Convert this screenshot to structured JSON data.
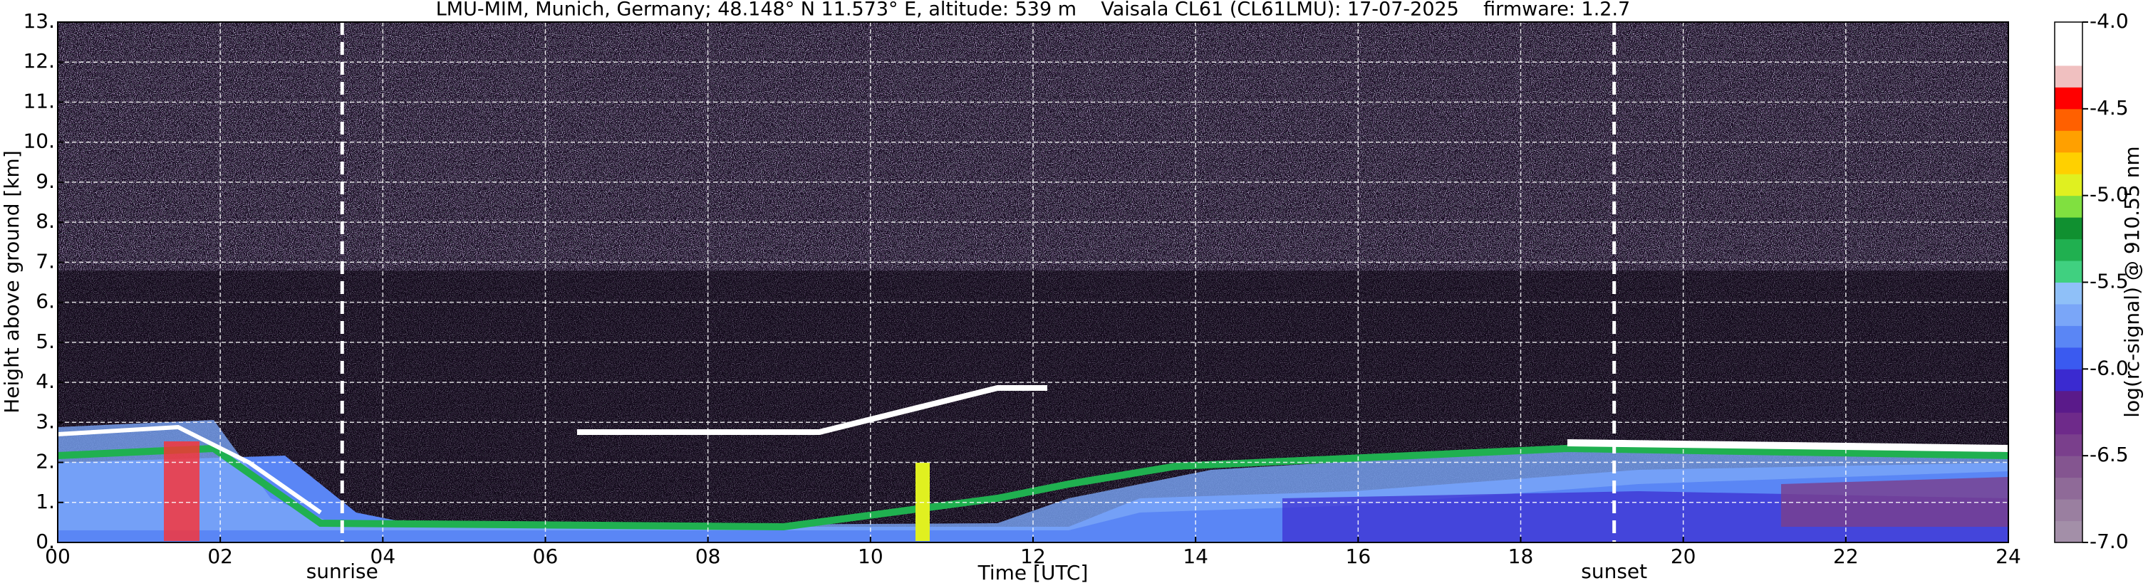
{
  "chart_data": {
    "type": "heatmap",
    "title": "LMU-MIM, Munich, Germany; 48.148° N 11.573° E, altitude: 539 m    Vaisala CL61 (CL61LMU): 17-07-2025    firmware: 1.2.7",
    "x_label": "Time [UTC]",
    "y_label": "Height above ground [km]",
    "xlim": [
      0,
      24
    ],
    "xticks": [
      {
        "value": 0,
        "label": "00"
      },
      {
        "value": 2,
        "label": "02"
      },
      {
        "value": 4,
        "label": "04"
      },
      {
        "value": 6,
        "label": "06"
      },
      {
        "value": 8,
        "label": "08"
      },
      10,
      12,
      14,
      16,
      18,
      20,
      22,
      24
    ],
    "ylim": [
      0,
      13
    ],
    "yticks": [
      {
        "value": 0,
        "label": "0."
      },
      {
        "value": 1,
        "label": "1."
      },
      {
        "value": 2,
        "label": "2."
      },
      {
        "value": 3,
        "label": "3."
      },
      {
        "value": 4,
        "label": "4."
      },
      {
        "value": 5,
        "label": "5."
      },
      {
        "value": 6,
        "label": "6."
      },
      {
        "value": 7,
        "label": "7."
      },
      {
        "value": 8,
        "label": "8."
      },
      {
        "value": 9,
        "label": "9."
      },
      {
        "value": 10,
        "label": "10."
      },
      {
        "value": 11,
        "label": "11."
      },
      {
        "value": 12,
        "label": "12."
      },
      {
        "value": 13,
        "label": "13."
      }
    ],
    "grid": true,
    "markers": [
      {
        "label": "sunrise",
        "x": 3.5
      },
      {
        "label": "sunset",
        "x": 19.15
      }
    ],
    "colorbar": {
      "label": "log(rc-signal) @ 910.55 nm",
      "lim": [
        -7.0,
        -4.0
      ],
      "ticks": [
        {
          "value": -7,
          "label": "-7.0"
        },
        -6.5,
        {
          "value": -6,
          "label": "-6.0"
        },
        -5.5,
        {
          "value": -5,
          "label": "-5.0"
        },
        -4.5,
        {
          "value": -4,
          "label": "-4.0"
        }
      ],
      "colors": [
        "#a38fa8",
        "#9a7fa0",
        "#8f6a98",
        "#845590",
        "#7a3f8c",
        "#6e2a8a",
        "#5a1a8a",
        "#3a2ad0",
        "#3a5af0",
        "#5a86f5",
        "#7aa6f8",
        "#8fc0f8",
        "#40d080",
        "#20b050",
        "#109030",
        "#80e040",
        "#e0f020",
        "#ffd000",
        "#ffa000",
        "#ff6000",
        "#ff0000",
        "#f0c0c0",
        "#ffffff",
        "#ffffff"
      ]
    }
  }
}
